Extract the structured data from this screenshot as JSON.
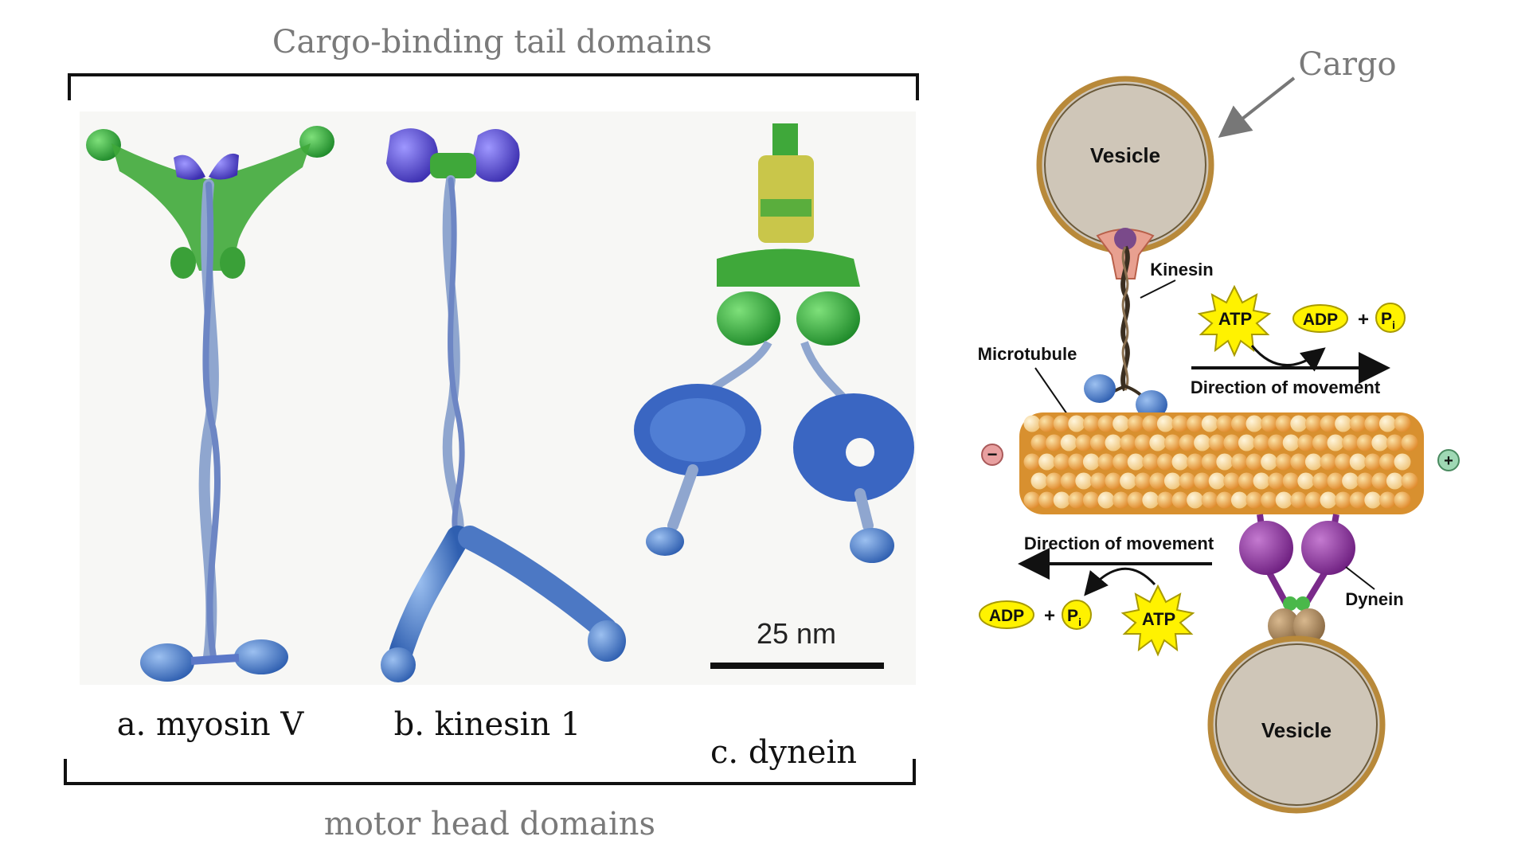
{
  "left": {
    "top_bracket_label": "Cargo-binding tail domains",
    "bottom_bracket_label": "motor head domains",
    "scale_bar_label": "25 nm",
    "captions": {
      "a": "a. myosin V",
      "b": "b. kinesin 1",
      "c": "c. dynein"
    }
  },
  "right": {
    "cargo_label": "Cargo",
    "vesicle_top": "Vesicle",
    "vesicle_bottom": "Vesicle",
    "kinesin": "Kinesin",
    "dynein": "Dynein",
    "microtubule": "Microtubule",
    "direction_top": "Direction of movement",
    "direction_bottom": "Direction of movement",
    "atp_top": "ATP",
    "adp_top": "ADP",
    "pi_top_main": "P",
    "pi_top_sub": "i",
    "plus_sign_top": "+",
    "atp_bottom": "ATP",
    "adp_bottom": "ADP",
    "pi_bottom_main": "P",
    "pi_bottom_sub": "i",
    "plus_sign_bottom": "+",
    "minus_end": "−",
    "plus_end": "+"
  },
  "colors": {
    "myosin_green": "#3fa83a",
    "purple_head": "#5a4fc8",
    "blue_stalk": "#5b78c8",
    "microtubule_orange": "#e49a3a",
    "microtubule_light": "#f6d28c",
    "dynein_purple": "#8b2f9b",
    "atp_yellow": "#fff200",
    "vesicle_fill": "#cfc6b8",
    "vesicle_rim": "#b8893a",
    "label_gray": "#7a7a7a"
  }
}
